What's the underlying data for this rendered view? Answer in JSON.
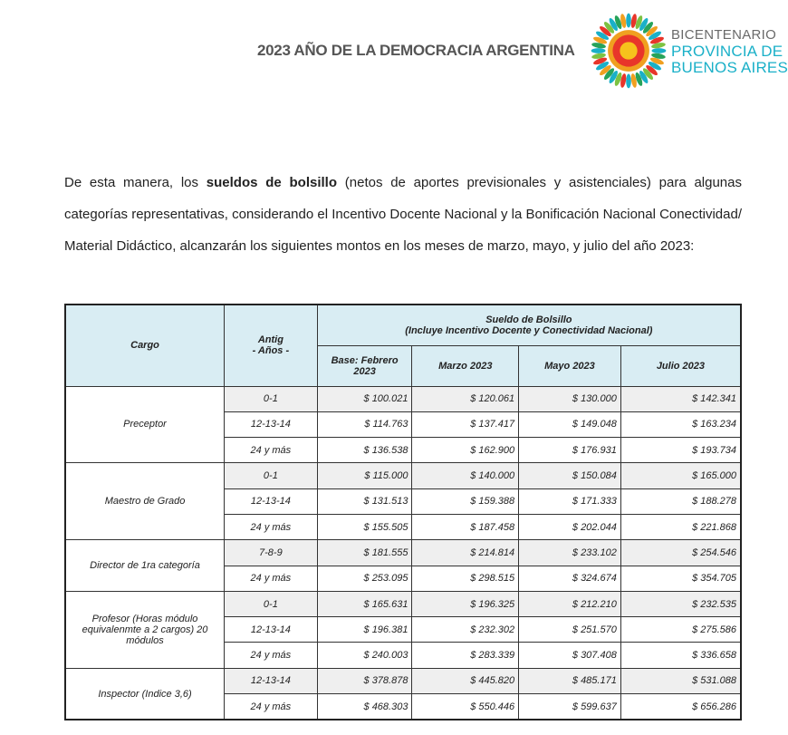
{
  "header": {
    "title": "2023 AÑO DE LA DEMOCRACIA ARGENTINA",
    "logo": {
      "line1": "BICENTENARIO",
      "line2": "PROVINCIA DE",
      "line3": "BUENOS AIRES",
      "accent": "#1ab0c8"
    }
  },
  "paragraph": {
    "before": "De esta manera, los ",
    "bold": "sueldos de bolsillo",
    "after": " (netos de aportes previsionales y asistenciales) para algunas categorías representativas, considerando el Incentivo Docente Nacional y la Bonificación Nacional Conectividad/ Material Didáctico, alcanzarán los siguientes montos en los meses de marzo, mayo, y julio del año 2023:"
  },
  "table": {
    "col_cargo": "Cargo",
    "col_antig": "Antig\n- Años -",
    "group_title": "Sueldo de Bolsillo",
    "group_subtitle": "(Incluye Incentivo Docente y Conectividad Nacional)",
    "months": [
      "Base: Febrero 2023",
      "Marzo 2023",
      "Mayo 2023",
      "Julio 2023"
    ],
    "groups": [
      {
        "cargo": "Preceptor",
        "rows": [
          {
            "antig": "0-1",
            "values": [
              "$ 100.021",
              "$ 120.061",
              "$ 130.000",
              "$ 142.341"
            ]
          },
          {
            "antig": "12-13-14",
            "values": [
              "$ 114.763",
              "$ 137.417",
              "$ 149.048",
              "$ 163.234"
            ]
          },
          {
            "antig": "24 y más",
            "values": [
              "$ 136.538",
              "$ 162.900",
              "$ 176.931",
              "$ 193.734"
            ]
          }
        ]
      },
      {
        "cargo": "Maestro de Grado",
        "rows": [
          {
            "antig": "0-1",
            "values": [
              "$ 115.000",
              "$ 140.000",
              "$ 150.084",
              "$ 165.000"
            ]
          },
          {
            "antig": "12-13-14",
            "values": [
              "$ 131.513",
              "$ 159.388",
              "$ 171.333",
              "$ 188.278"
            ]
          },
          {
            "antig": "24 y más",
            "values": [
              "$ 155.505",
              "$ 187.458",
              "$ 202.044",
              "$ 221.868"
            ]
          }
        ]
      },
      {
        "cargo": "Director de 1ra categoría",
        "rows": [
          {
            "antig": "7-8-9",
            "values": [
              "$ 181.555",
              "$ 214.814",
              "$ 233.102",
              "$ 254.546"
            ]
          },
          {
            "antig": "24 y más",
            "values": [
              "$ 253.095",
              "$ 298.515",
              "$ 324.674",
              "$ 354.705"
            ]
          }
        ]
      },
      {
        "cargo": "Profesor (Horas módulo equivalenmte a 2 cargos) 20 módulos",
        "rows": [
          {
            "antig": "0-1",
            "values": [
              "$ 165.631",
              "$ 196.325",
              "$ 212.210",
              "$ 232.535"
            ]
          },
          {
            "antig": "12-13-14",
            "values": [
              "$ 196.381",
              "$ 232.302",
              "$ 251.570",
              "$ 275.586"
            ]
          },
          {
            "antig": "24 y más",
            "values": [
              "$ 240.003",
              "$ 283.339",
              "$ 307.408",
              "$ 336.658"
            ]
          }
        ]
      },
      {
        "cargo": "Inspector (Indice 3,6)",
        "rows": [
          {
            "antig": "12-13-14",
            "values": [
              "$ 378.878",
              "$ 445.820",
              "$ 485.171",
              "$ 531.088"
            ]
          },
          {
            "antig": "24 y más",
            "values": [
              "$ 468.303",
              "$ 550.446",
              "$ 599.637",
              "$ 656.286"
            ]
          }
        ]
      }
    ]
  }
}
